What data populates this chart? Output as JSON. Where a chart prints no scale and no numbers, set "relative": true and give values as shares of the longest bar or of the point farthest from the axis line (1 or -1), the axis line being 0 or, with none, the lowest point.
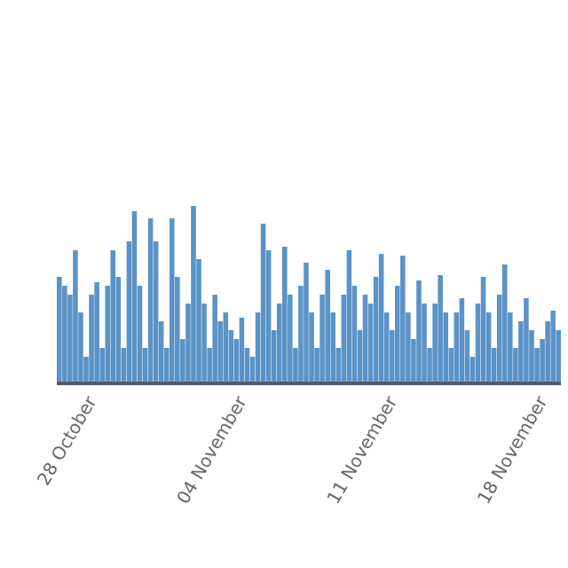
{
  "chart_data": {
    "type": "bar",
    "relative": true,
    "color": "#5b93c7",
    "categories": [
      null,
      null,
      null,
      null,
      null,
      null,
      "28 October",
      null,
      null,
      null,
      null,
      null,
      null,
      null,
      null,
      null,
      null,
      null,
      null,
      null,
      null,
      null,
      null,
      null,
      null,
      null,
      null,
      null,
      null,
      null,
      null,
      null,
      null,
      null,
      "04 November",
      null,
      null,
      null,
      null,
      null,
      null,
      null,
      null,
      null,
      null,
      null,
      null,
      null,
      null,
      null,
      null,
      null,
      null,
      null,
      null,
      null,
      null,
      null,
      null,
      null,
      null,
      null,
      "11 November",
      null,
      null,
      null,
      null,
      null,
      null,
      null,
      null,
      null,
      null,
      null,
      null,
      null,
      null,
      null,
      null,
      null,
      null,
      null,
      null,
      null,
      null,
      null,
      null,
      null,
      null,
      null,
      "18 November",
      null,
      null,
      null
    ],
    "values": [
      0.6,
      0.55,
      0.5,
      0.75,
      0.4,
      0.15,
      0.5,
      0.57,
      0.2,
      0.55,
      0.75,
      0.6,
      0.2,
      0.8,
      0.97,
      0.55,
      0.2,
      0.93,
      0.8,
      0.35,
      0.2,
      0.93,
      0.6,
      0.25,
      0.45,
      1,
      0.7,
      0.45,
      0.2,
      0.5,
      0.35,
      0.4,
      0.3,
      0.25,
      0.37,
      0.2,
      0.15,
      0.4,
      0.9,
      0.75,
      0.3,
      0.45,
      0.77,
      0.5,
      0.2,
      0.55,
      0.68,
      0.4,
      0.2,
      0.5,
      0.64,
      0.4,
      0.2,
      0.5,
      0.75,
      0.55,
      0.3,
      0.5,
      0.45,
      0.6,
      0.73,
      0.4,
      0.3,
      0.55,
      0.72,
      0.4,
      0.25,
      0.58,
      0.45,
      0.2,
      0.45,
      0.61,
      0.4,
      0.2,
      0.4,
      0.48,
      0.3,
      0.15,
      0.45,
      0.6,
      0.4,
      0.2,
      0.5,
      0.67,
      0.4,
      0.2,
      0.35,
      0.48,
      0.3,
      0.2,
      0.25,
      0.35,
      0.41,
      0.3
    ]
  }
}
